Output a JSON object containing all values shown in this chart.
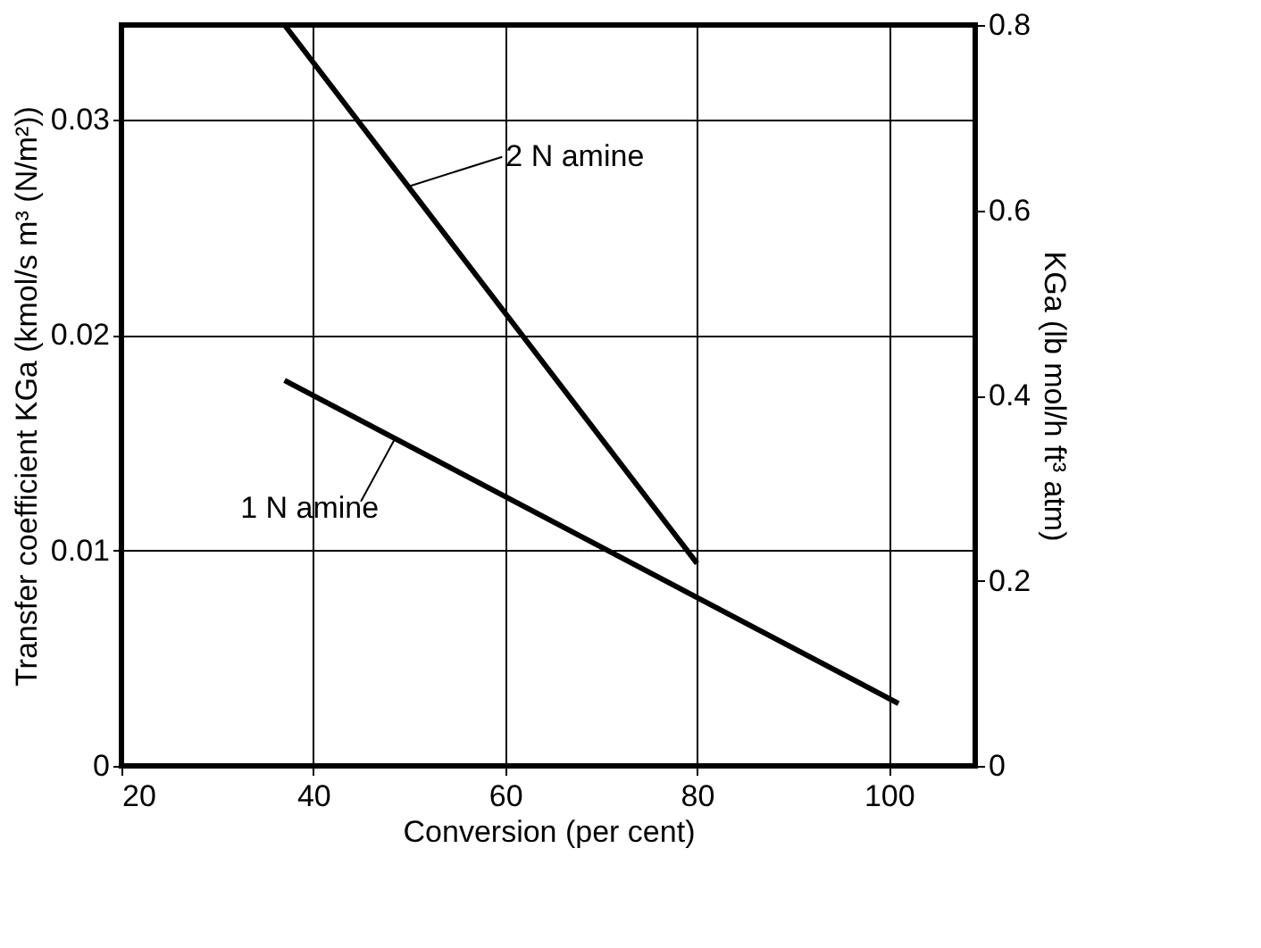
{
  "chart_data": {
    "type": "line",
    "xlabel": "Conversion (per cent)",
    "ylabel": "Transfer coefficient KGa (kmol/s m³ (N/m²))",
    "y2label": "KGa (lb mol/h ft³ atm)",
    "series": [
      {
        "name": "2 N amine",
        "color": "#000000",
        "x": [
          37,
          80
        ],
        "values": [
          0.0344,
          0.0094
        ]
      },
      {
        "name": "1 N amine",
        "color": "#000000",
        "x": [
          37,
          101
        ],
        "values": [
          0.0179,
          0.0029
        ]
      }
    ],
    "xlim": [
      20,
      109
    ],
    "xticks": [
      20,
      40,
      60,
      80,
      100
    ],
    "ylim": [
      0,
      0.0344
    ],
    "yticks": [
      0,
      0.01,
      0.02,
      0.03
    ],
    "y2lim": [
      0,
      0.8
    ],
    "y2ticks": [
      0,
      0.2,
      0.4,
      0.6,
      0.8
    ],
    "grid": true,
    "marker": "none",
    "line_style": "solid"
  }
}
